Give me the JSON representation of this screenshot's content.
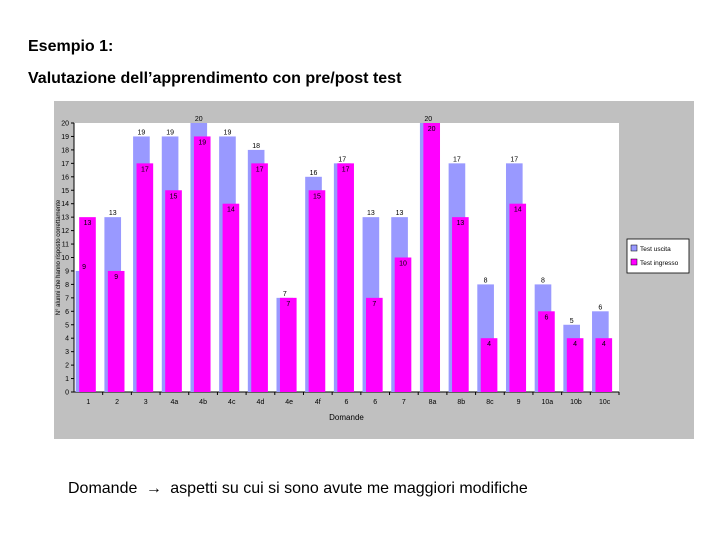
{
  "slide": {
    "title": "Esempio 1:",
    "subtitle": "Valutazione dell’apprendimento con pre/post test",
    "footer_left": "Domande",
    "footer_arrow": "→",
    "footer_right": "aspetti su cui si sono avute me maggiori modifiche"
  },
  "chart_data": {
    "type": "bar",
    "title": "",
    "xlabel": "Domande",
    "ylabel": "N° alunni che hanno risposto correttamente",
    "ylim": [
      0,
      20
    ],
    "ytick_step": 1,
    "grid": false,
    "legend": "right",
    "categories": [
      "1",
      "2",
      "3",
      "4a",
      "4b",
      "4c",
      "4d",
      "4e",
      "4f",
      "6",
      "6",
      "7",
      "8a",
      "8b",
      "8c",
      "9",
      "10a",
      "10b",
      "10c"
    ],
    "series": [
      {
        "name": "Test uscita",
        "color": "#9999ff",
        "values": [
          9,
          13,
          19,
          19,
          20,
          19,
          18,
          7,
          16,
          17,
          13,
          13,
          20,
          17,
          8,
          17,
          8,
          5,
          6
        ]
      },
      {
        "name": "Test ingresso",
        "color": "#ff00ff",
        "values": [
          13,
          9,
          17,
          15,
          19,
          14,
          17,
          7,
          15,
          17,
          7,
          10,
          20,
          13,
          4,
          14,
          6,
          4,
          4
        ]
      }
    ]
  }
}
